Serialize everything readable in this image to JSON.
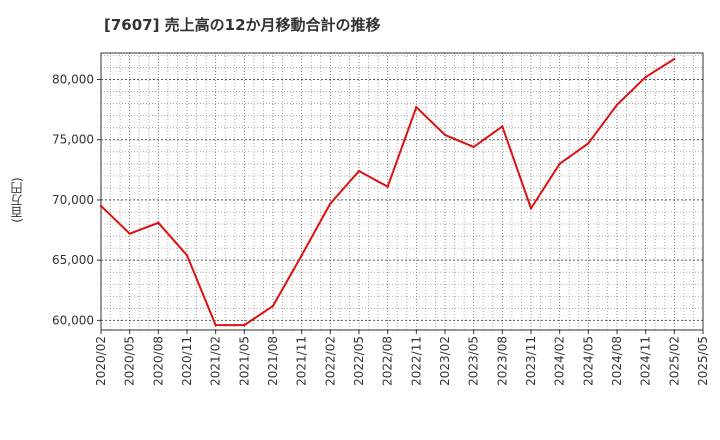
{
  "chart_data": {
    "type": "line",
    "title": "[7607]  売上高の12か月移動合計の推移",
    "ylabel": "(百万円)",
    "xlabel": "",
    "grid": true,
    "categories": [
      "2020/02",
      "2020/05",
      "2020/08",
      "2020/11",
      "2021/02",
      "2021/05",
      "2021/08",
      "2021/11",
      "2022/02",
      "2022/05",
      "2022/08",
      "2022/11",
      "2023/02",
      "2023/05",
      "2023/08",
      "2023/11",
      "2024/02",
      "2024/05",
      "2024/08",
      "2024/11",
      "2025/02",
      "2025/05"
    ],
    "series": [
      {
        "name": "売上高の12か月移動合計",
        "color": "#dd1111",
        "values": [
          69500,
          67200,
          68100,
          65400,
          59600,
          59600,
          61200,
          65400,
          69700,
          72400,
          71100,
          77700,
          75400,
          74400,
          76100,
          69300,
          73000,
          74700,
          77900,
          80200,
          81700,
          null
        ]
      }
    ],
    "ylim": [
      59200,
      82200
    ],
    "yticks": [
      60000,
      65000,
      70000,
      75000,
      80000
    ],
    "ytick_labels": [
      "60,000",
      "65,000",
      "70,000",
      "75,000",
      "80,000"
    ]
  }
}
